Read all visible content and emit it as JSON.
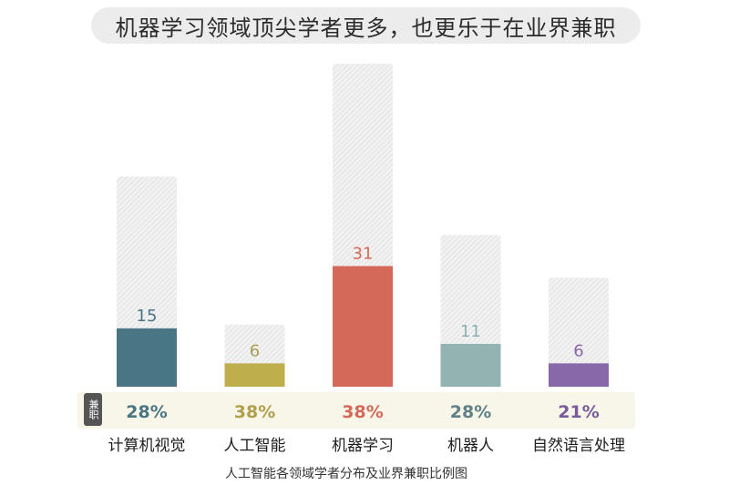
{
  "title": "机器学习领域顶尖学者更多，也更乐于在业界兼职",
  "caption": "人工智能各领域学者分布及业界兼职比例图",
  "band_label": "兼职",
  "colors": {
    "background_bar": "#ececec",
    "hatch": "#d2d2d2",
    "band": "#f7f6e8",
    "badge": "#555555"
  },
  "chart_data": {
    "type": "bar",
    "title": "机器学习领域顶尖学者更多，也更乐于在业界兼职",
    "categories": [
      "计算机视觉",
      "人工智能",
      "机器学习",
      "机器人",
      "自然语言处理"
    ],
    "series": [
      {
        "values": [
          15,
          6,
          31,
          11,
          6
        ]
      }
    ],
    "total_scholars_bar_levels": [
      54,
      16,
      83,
      39,
      28
    ],
    "part_time_labels": [
      "28%",
      "38%",
      "38%",
      "28%",
      "21%"
    ],
    "bar_colors": [
      "#4a7585",
      "#bfaf4c",
      "#d4695a",
      "#93b2b2",
      "#8868a8"
    ],
    "value_label_colors": [
      "#4a7585",
      "#a99d55",
      "#d4695a",
      "#8fb0b0",
      "#8868a8"
    ],
    "percent_colors": [
      "#4a7585",
      "#b0a04e",
      "#d4695a",
      "#5f8088",
      "#7a5a9c"
    ],
    "ylim": [
      0,
      83
    ],
    "grid": false,
    "legend": "none"
  }
}
